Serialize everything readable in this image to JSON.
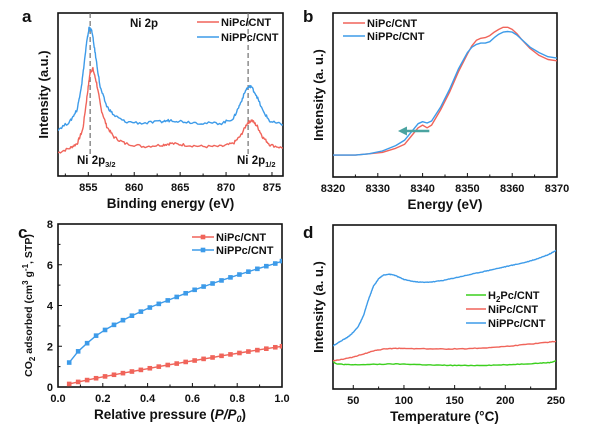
{
  "figure": {
    "panels": [
      "a",
      "b",
      "c",
      "d"
    ]
  },
  "colors": {
    "NiPc/CNT": "#f0645a",
    "NiPPc/CNT": "#3d9be9",
    "H2Pc/CNT": "#3ccf1e",
    "arrow": "#4aa3a0",
    "dashed": "#707070"
  },
  "chart_data": [
    {
      "panel": "a",
      "type": "line",
      "title": "Ni 2p",
      "xlabel": "Binding energy (eV)",
      "ylabel": "Intensity (a.u.)",
      "xlim": [
        851.7,
        876.2
      ],
      "ylim": [
        0,
        1
      ],
      "x_ticks": [
        855,
        860,
        865,
        870,
        875
      ],
      "y_ticks": [],
      "legend": [
        "NiPc/CNT",
        "NiPPc/CNT"
      ],
      "legend_position": "top-right",
      "annotations": [
        {
          "text": "Ni 2p",
          "sub": "3/2",
          "x": 855.3
        },
        {
          "text": "Ni 2p",
          "sub": "1/2",
          "x": 872.6
        }
      ],
      "dashed_lines_x": [
        855.2,
        872.4
      ],
      "series": [
        {
          "name": "NiPc/CNT",
          "x": [
            851.7,
            853.0,
            853.8,
            854.4,
            854.9,
            855.2,
            855.5,
            855.9,
            856.4,
            857.0,
            857.8,
            859.0,
            861.0,
            863.0,
            864.0,
            865.5,
            867.5,
            869.5,
            870.8,
            871.6,
            872.3,
            872.8,
            873.4,
            874.0,
            874.8,
            876.2
          ],
          "y": [
            0.1,
            0.13,
            0.16,
            0.25,
            0.48,
            0.62,
            0.64,
            0.55,
            0.38,
            0.27,
            0.2,
            0.16,
            0.14,
            0.15,
            0.16,
            0.15,
            0.14,
            0.14,
            0.16,
            0.21,
            0.29,
            0.31,
            0.27,
            0.2,
            0.15,
            0.13
          ]
        },
        {
          "name": "NiPPc/CNT",
          "x": [
            851.7,
            853.0,
            853.8,
            854.3,
            854.8,
            855.1,
            855.4,
            855.8,
            856.3,
            857.0,
            857.8,
            859.0,
            861.0,
            863.0,
            864.0,
            865.5,
            867.5,
            869.5,
            870.8,
            871.5,
            872.2,
            872.7,
            873.3,
            874.0,
            874.8,
            876.2
          ],
          "y": [
            0.25,
            0.3,
            0.38,
            0.55,
            0.8,
            0.91,
            0.88,
            0.72,
            0.52,
            0.4,
            0.34,
            0.3,
            0.29,
            0.3,
            0.31,
            0.3,
            0.29,
            0.29,
            0.32,
            0.41,
            0.51,
            0.53,
            0.47,
            0.37,
            0.3,
            0.28
          ]
        }
      ]
    },
    {
      "panel": "b",
      "type": "line",
      "title": "",
      "xlabel": "Energy  (eV)",
      "ylabel": "Intensity (a. u.)",
      "xlim": [
        8320,
        8370
      ],
      "ylim": [
        0,
        1
      ],
      "x_ticks": [
        8320,
        8330,
        8340,
        8350,
        8360,
        8370
      ],
      "y_ticks": [],
      "legend": [
        "NiPc/CNT",
        "NiPPc/CNT"
      ],
      "legend_position": "top-left",
      "arrow": {
        "from_x": 8341.5,
        "to_x": 8334.5,
        "y": 0.18,
        "direction": "left"
      },
      "series": [
        {
          "name": "NiPc/CNT",
          "x": [
            8320,
            8325,
            8328,
            8331,
            8334,
            8336,
            8337.5,
            8339,
            8340,
            8341,
            8342,
            8344,
            8346,
            8348,
            8350,
            8351,
            8352,
            8353,
            8354,
            8355,
            8356,
            8357,
            8358,
            8359,
            8360,
            8361,
            8362,
            8364,
            8366,
            8368,
            8370
          ],
          "y": [
            0.0,
            0.0,
            0.01,
            0.02,
            0.05,
            0.08,
            0.14,
            0.2,
            0.22,
            0.2,
            0.22,
            0.33,
            0.46,
            0.61,
            0.74,
            0.8,
            0.84,
            0.855,
            0.86,
            0.875,
            0.9,
            0.92,
            0.935,
            0.935,
            0.92,
            0.89,
            0.85,
            0.78,
            0.73,
            0.7,
            0.69
          ]
        },
        {
          "name": "NiPPc/CNT",
          "x": [
            8320,
            8325,
            8328,
            8331,
            8334,
            8336,
            8337.5,
            8339,
            8340,
            8341,
            8342,
            8344,
            8346,
            8348,
            8350,
            8351,
            8352,
            8353,
            8354,
            8355,
            8356,
            8357,
            8358,
            8359,
            8360,
            8361,
            8362,
            8364,
            8366,
            8368,
            8370
          ],
          "y": [
            0.0,
            0.0,
            0.01,
            0.03,
            0.07,
            0.11,
            0.17,
            0.23,
            0.245,
            0.235,
            0.25,
            0.35,
            0.48,
            0.63,
            0.75,
            0.79,
            0.81,
            0.82,
            0.82,
            0.83,
            0.86,
            0.885,
            0.9,
            0.905,
            0.9,
            0.88,
            0.85,
            0.79,
            0.75,
            0.72,
            0.71
          ]
        }
      ]
    },
    {
      "panel": "c",
      "type": "line",
      "title": "",
      "xlabel": "Relative pressure (P/P0)",
      "ylabel": "CO2 adsorbed (cm3 g-1, STP)",
      "xlim": [
        0.0,
        1.0
      ],
      "ylim": [
        0,
        8
      ],
      "x_ticks": [
        0.0,
        0.2,
        0.4,
        0.6,
        0.8,
        1.0
      ],
      "y_ticks": [
        0,
        2,
        4,
        6,
        8
      ],
      "legend": [
        "NiPc/CNT",
        "NiPPc/CNT"
      ],
      "legend_position": "top-right",
      "markers": "square",
      "series": [
        {
          "name": "NiPc/CNT",
          "x": [
            0.05,
            0.09,
            0.13,
            0.17,
            0.21,
            0.25,
            0.29,
            0.33,
            0.37,
            0.41,
            0.45,
            0.49,
            0.53,
            0.57,
            0.61,
            0.65,
            0.69,
            0.73,
            0.77,
            0.81,
            0.85,
            0.89,
            0.93,
            0.97,
            1.0
          ],
          "y": [
            0.15,
            0.25,
            0.34,
            0.43,
            0.52,
            0.6,
            0.68,
            0.76,
            0.84,
            0.92,
            1.0,
            1.08,
            1.15,
            1.23,
            1.3,
            1.38,
            1.45,
            1.53,
            1.6,
            1.67,
            1.74,
            1.81,
            1.88,
            1.95,
            2.0
          ]
        },
        {
          "name": "NiPPc/CNT",
          "x": [
            0.05,
            0.09,
            0.13,
            0.17,
            0.21,
            0.25,
            0.29,
            0.33,
            0.37,
            0.41,
            0.45,
            0.49,
            0.53,
            0.57,
            0.61,
            0.65,
            0.69,
            0.73,
            0.77,
            0.81,
            0.85,
            0.89,
            0.93,
            0.97,
            1.0
          ],
          "y": [
            1.2,
            1.75,
            2.15,
            2.52,
            2.8,
            3.05,
            3.28,
            3.5,
            3.7,
            3.9,
            4.08,
            4.25,
            4.42,
            4.6,
            4.77,
            4.93,
            5.08,
            5.23,
            5.38,
            5.52,
            5.66,
            5.8,
            5.93,
            6.06,
            6.18
          ]
        }
      ]
    },
    {
      "panel": "d",
      "type": "line",
      "title": "",
      "xlabel": "Temperature (°C)",
      "ylabel": "Intensity (a. u.)",
      "xlim": [
        30,
        250
      ],
      "ylim": [
        0,
        1
      ],
      "x_ticks": [
        50,
        100,
        150,
        200,
        250
      ],
      "y_ticks": [],
      "legend": [
        "H2Pc/CNT",
        "NiPc/CNT",
        "NiPPc/CNT"
      ],
      "legend_position": "center-right",
      "series": [
        {
          "name": "H2Pc/CNT",
          "x": [
            30,
            33,
            40,
            50,
            70,
            90,
            110,
            130,
            150,
            170,
            190,
            210,
            230,
            245,
            250
          ],
          "y": [
            0.135,
            0.12,
            0.115,
            0.112,
            0.115,
            0.118,
            0.115,
            0.11,
            0.108,
            0.108,
            0.11,
            0.115,
            0.122,
            0.128,
            0.14
          ]
        },
        {
          "name": "NiPc/CNT",
          "x": [
            30,
            40,
            50,
            60,
            70,
            80,
            90,
            100,
            120,
            140,
            160,
            180,
            200,
            220,
            240,
            250
          ],
          "y": [
            0.14,
            0.15,
            0.165,
            0.185,
            0.205,
            0.218,
            0.222,
            0.222,
            0.22,
            0.218,
            0.22,
            0.226,
            0.235,
            0.248,
            0.262,
            0.27
          ]
        },
        {
          "name": "NiPPc/CNT",
          "x": [
            30,
            35,
            40,
            45,
            50,
            55,
            60,
            65,
            70,
            75,
            80,
            85,
            90,
            95,
            100,
            110,
            120,
            130,
            140,
            150,
            160,
            170,
            180,
            190,
            200,
            210,
            220,
            230,
            240,
            245,
            250
          ],
          "y": [
            0.24,
            0.26,
            0.28,
            0.3,
            0.33,
            0.37,
            0.44,
            0.55,
            0.64,
            0.69,
            0.715,
            0.72,
            0.715,
            0.7,
            0.685,
            0.67,
            0.665,
            0.67,
            0.68,
            0.695,
            0.71,
            0.725,
            0.74,
            0.755,
            0.77,
            0.785,
            0.8,
            0.82,
            0.845,
            0.86,
            0.88
          ]
        }
      ]
    }
  ]
}
